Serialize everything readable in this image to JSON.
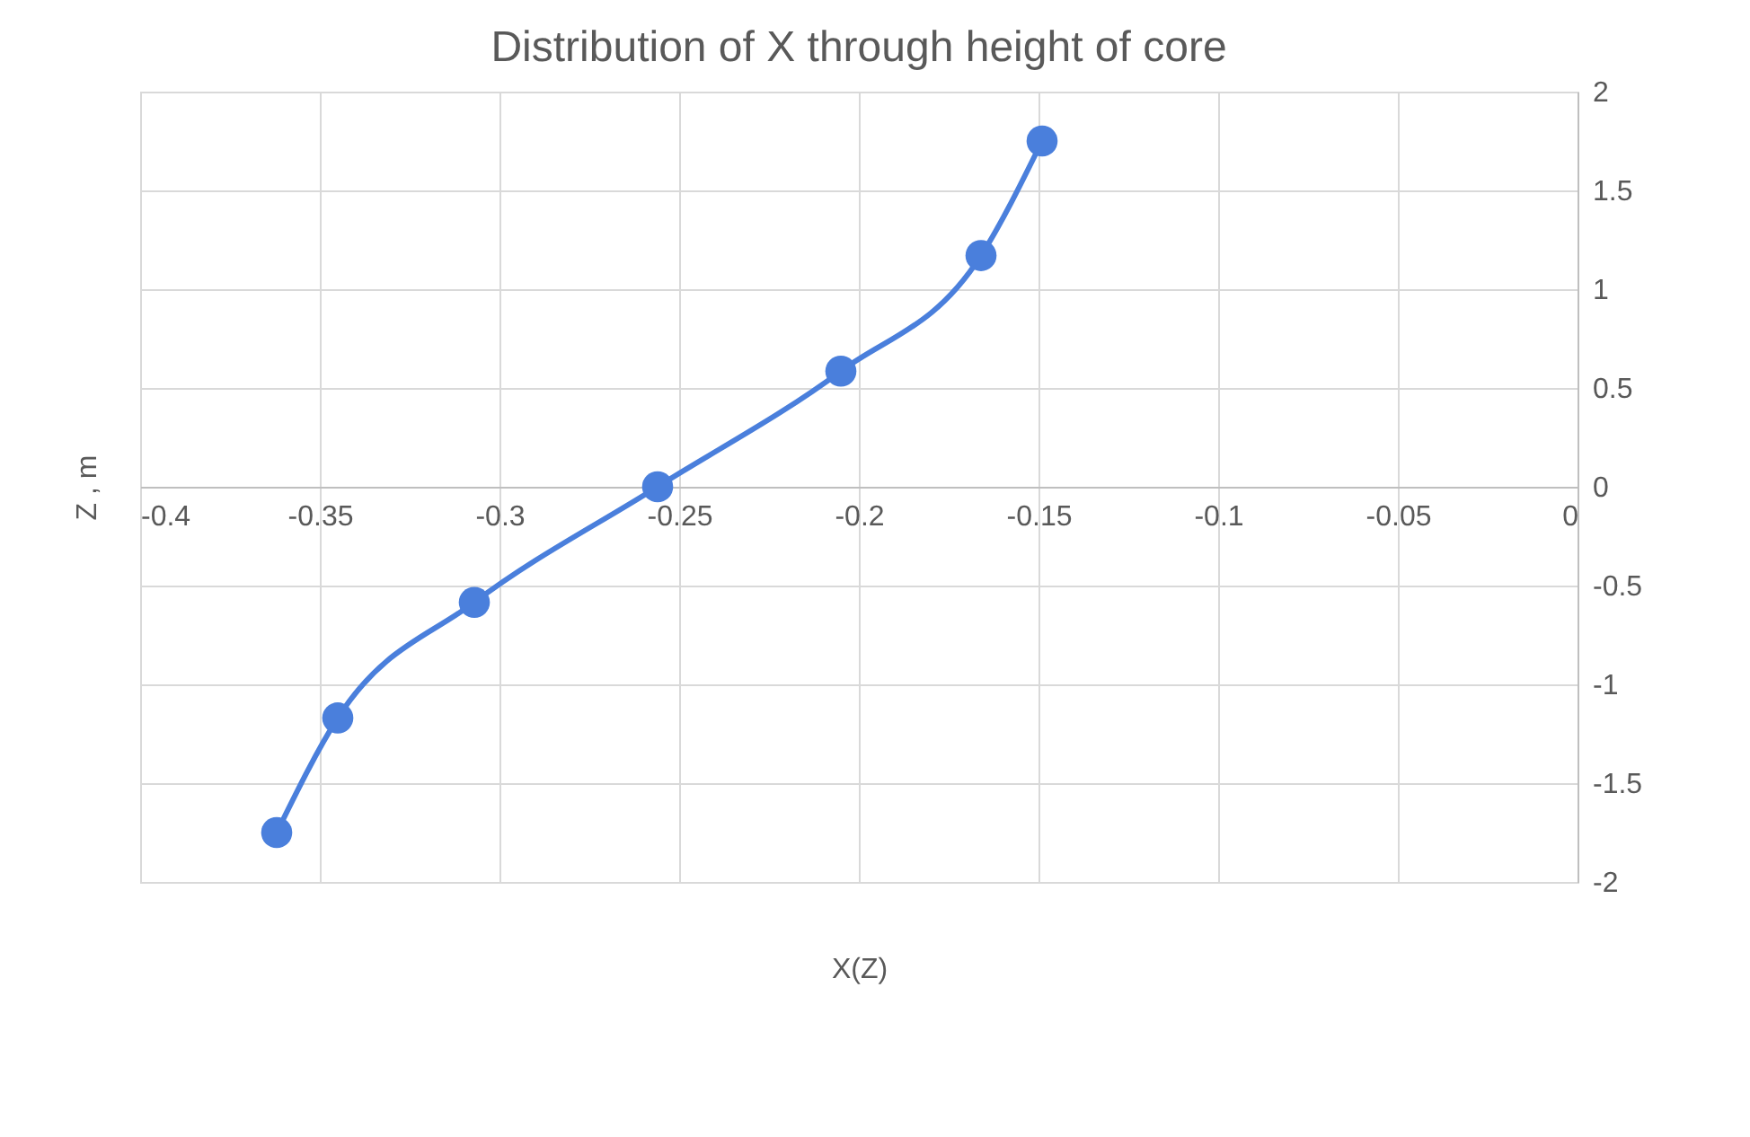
{
  "chart_data": {
    "type": "line",
    "title": "Distribution of X through height of core",
    "xlabel": "X(Z)",
    "ylabel": "Z , m",
    "series": [
      {
        "color": "#4a7fdc",
        "x": [
          -0.362,
          -0.345,
          -0.307,
          -0.256,
          -0.205,
          -0.166,
          -0.149
        ],
        "values": [
          -1.75,
          -1.17,
          -0.585,
          0,
          0.585,
          1.17,
          1.75
        ]
      }
    ],
    "xlim": [
      -0.4,
      0
    ],
    "xticks": [
      -0.4,
      -0.35,
      -0.3,
      -0.25,
      -0.2,
      -0.15,
      -0.1,
      -0.05,
      0
    ],
    "ylim": [
      -2,
      2
    ],
    "yticks": [
      -2,
      -1.5,
      -1,
      -0.5,
      0,
      0.5,
      1,
      1.5,
      2
    ],
    "grid": true,
    "marker": "circle",
    "line_style": "solid",
    "legend": false
  }
}
